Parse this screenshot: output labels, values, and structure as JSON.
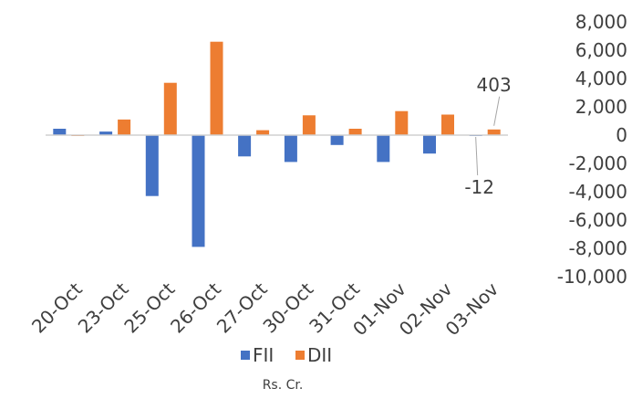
{
  "chart_data": {
    "type": "bar",
    "title": "",
    "xlabel": "",
    "ylabel": "",
    "unit_caption": "Rs. Cr.",
    "categories": [
      "20-Oct",
      "23-Oct",
      "25-Oct",
      "26-Oct",
      "27-Oct",
      "30-Oct",
      "31-Oct",
      "01-Nov",
      "02-Nov",
      "03-Nov"
    ],
    "series": [
      {
        "name": "FII",
        "color": "#4472C4",
        "values": [
          450,
          250,
          -4300,
          -7900,
          -1500,
          -1900,
          -700,
          -1900,
          -1300,
          -12
        ]
      },
      {
        "name": "DII",
        "color": "#ED7D31",
        "values": [
          -50,
          1100,
          3700,
          6600,
          350,
          1400,
          450,
          1700,
          1450,
          403
        ]
      }
    ],
    "ylim": [
      -10000,
      8000
    ],
    "yticks": [
      8000,
      6000,
      4000,
      2000,
      0,
      -2000,
      -4000,
      -6000,
      -8000,
      -10000
    ],
    "ytick_labels": [
      "8,000",
      "6,000",
      "4,000",
      "2,000",
      "0",
      "-2,000",
      "-4,000",
      "-6,000",
      "-8,000",
      "-10,000"
    ],
    "y_axis_position": "right",
    "grid": false,
    "legend_position": "bottom",
    "annotations": [
      {
        "series": "DII",
        "category": "03-Nov",
        "text": "403"
      },
      {
        "series": "FII",
        "category": "03-Nov",
        "text": "-12"
      }
    ]
  }
}
